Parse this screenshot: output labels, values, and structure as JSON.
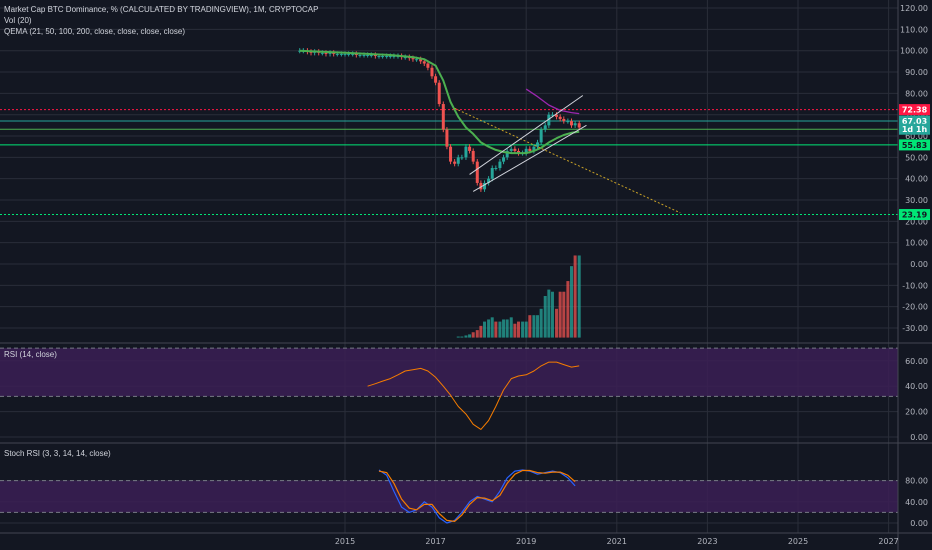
{
  "legend": {
    "title": "Market Cap BTC Dominance, % (CALCULATED BY TRADINGVIEW), 1M, CRYPTOCAP",
    "vol": "Vol (20)",
    "qema": "QEMA (21, 50, 100, 200, close, close, close, close)",
    "rsi": "RSI (14, close)",
    "stoch": "Stoch RSI (3, 3, 14, 14, close)"
  },
  "colors": {
    "background": "#131722",
    "grid": "#2a2e39",
    "up": "#26a69a",
    "down": "#ef5350",
    "ema_green": "#4caf50",
    "ema_purple": "#9c27b0",
    "rsi_line": "#f57c00",
    "band_fill": "#3b1f55",
    "stoch_k": "#2962ff",
    "stoch_d": "#f57c00",
    "red_level": "#ff1744",
    "green_level": "#00e676",
    "price_tag": "#26a69a"
  },
  "chart_data": [
    {
      "type": "line",
      "name_panel": "price",
      "y_axis_ticks": [
        "120.00",
        "110.00",
        "100.00",
        "90.00",
        "80.00",
        "70.00",
        "60.00",
        "50.00",
        "40.00",
        "30.00",
        "20.00",
        "10.00",
        "0.00",
        "-10.00",
        "-20.00",
        "-30.00"
      ],
      "ylim": [
        -35,
        123
      ],
      "x_axis_ticks": [
        "2015",
        "2017",
        "2019",
        "2021",
        "2023",
        "2025",
        "2027"
      ],
      "xlim": [
        2013.0,
        2027.2
      ],
      "price_labels": [
        {
          "value": 72.38,
          "label": "72.38",
          "color": "#ff1744"
        },
        {
          "value": 67.03,
          "label": "67.03",
          "color": "#26a69a"
        },
        {
          "value": 63.2,
          "label": "1d 1h",
          "color": "#26a69a"
        },
        {
          "value": 55.83,
          "label": "55.83",
          "color": "#00e676"
        },
        {
          "value": 23.19,
          "label": "23.19",
          "color": "#00e676"
        }
      ],
      "horizontal_levels": [
        {
          "value": 72.38,
          "style": "dotted",
          "color": "#ff1744"
        },
        {
          "value": 67.03,
          "style": "solid",
          "color": "#26a69a"
        },
        {
          "value": 63.2,
          "style": "solid",
          "color": "#4caf50"
        },
        {
          "value": 55.83,
          "style": "solid",
          "color": "#00e676"
        },
        {
          "value": 23.19,
          "style": "dotted",
          "color": "#00e676"
        }
      ],
      "closes": {
        "x": [
          2014.0,
          2014.08,
          2014.17,
          2014.25,
          2014.33,
          2014.42,
          2014.5,
          2014.58,
          2014.67,
          2014.75,
          2014.83,
          2014.92,
          2015.0,
          2015.08,
          2015.17,
          2015.25,
          2015.33,
          2015.42,
          2015.5,
          2015.58,
          2015.67,
          2015.75,
          2015.83,
          2015.92,
          2016.0,
          2016.08,
          2016.17,
          2016.25,
          2016.33,
          2016.42,
          2016.5,
          2016.58,
          2016.67,
          2016.75,
          2016.83,
          2016.92,
          2017.0,
          2017.08,
          2017.17,
          2017.25,
          2017.33,
          2017.42,
          2017.5,
          2017.58,
          2017.67,
          2017.75,
          2017.83,
          2017.92,
          2018.0,
          2018.08,
          2018.17,
          2018.25,
          2018.33,
          2018.42,
          2018.5,
          2018.58,
          2018.67,
          2018.75,
          2018.83,
          2018.92,
          2019.0,
          2019.08,
          2019.17,
          2019.25,
          2019.33,
          2019.42,
          2019.5,
          2019.58,
          2019.67,
          2019.75,
          2019.83,
          2019.92,
          2020.0,
          2020.08,
          2020.17
        ],
        "y": [
          100,
          100,
          99.5,
          99,
          99.5,
          99,
          99,
          98.5,
          99,
          98.5,
          98.5,
          98.5,
          98.5,
          98.5,
          98.5,
          98,
          98,
          98,
          98,
          98,
          97.5,
          97.5,
          97.5,
          97.5,
          97.5,
          97.5,
          97.5,
          97,
          97,
          96.5,
          96,
          96,
          95,
          94,
          92,
          88,
          85,
          75,
          63,
          55,
          48,
          47,
          50,
          50,
          55,
          53,
          48,
          38,
          35,
          38,
          40,
          45,
          45,
          48,
          50,
          53,
          54,
          53,
          52,
          52,
          54,
          53,
          55,
          57,
          63,
          65,
          70,
          70,
          69,
          68,
          67,
          67,
          65,
          66,
          64
        ]
      },
      "qema_green": {
        "x": [
          2014.0,
          2015.0,
          2016.0,
          2016.5,
          2016.75,
          2017.0,
          2017.17,
          2017.33,
          2017.5,
          2017.67,
          2017.83,
          2018.0,
          2018.17,
          2018.33,
          2018.5,
          2018.67,
          2018.83,
          2019.0,
          2019.17,
          2019.33,
          2019.5,
          2019.67,
          2019.83,
          2020.0,
          2020.17
        ],
        "y": [
          100,
          99,
          98,
          97,
          96,
          93,
          86,
          76,
          69,
          64,
          61,
          57,
          55,
          53.5,
          52.5,
          52,
          52,
          52,
          53,
          54.5,
          57,
          59,
          60.5,
          61.5,
          62
        ]
      },
      "qema_purple": {
        "x": [
          2019.0,
          2019.25,
          2019.5,
          2019.75,
          2020.0,
          2020.17
        ],
        "y": [
          82,
          78.5,
          74.5,
          72,
          71,
          70.5
        ]
      },
      "trend_lines": [
        {
          "x1": 2017.42,
          "y1": 73,
          "x2": 2022.4,
          "y2": 24
        },
        {
          "x1": 2017.75,
          "y1": 42,
          "x2": 2020.25,
          "y2": 79
        },
        {
          "x1": 2017.83,
          "y1": 34,
          "x2": 2020.33,
          "y2": 65
        }
      ],
      "volume": {
        "x": [
          2017.5,
          2017.58,
          2017.67,
          2017.75,
          2017.83,
          2017.92,
          2018.0,
          2018.08,
          2018.17,
          2018.25,
          2018.33,
          2018.42,
          2018.5,
          2018.58,
          2018.67,
          2018.75,
          2018.83,
          2018.92,
          2019.0,
          2019.08,
          2019.17,
          2019.25,
          2019.33,
          2019.42,
          2019.5,
          2019.58,
          2019.67,
          2019.75,
          2019.83,
          2019.92,
          2020.0,
          2020.08,
          2020.17
        ],
        "y": [
          -34,
          -34,
          -33.5,
          -33,
          -32,
          -31,
          -29,
          -27,
          -26,
          -25,
          -27,
          -27,
          -26,
          -26,
          -25,
          -28,
          -27,
          -27,
          -27,
          -24,
          -24,
          -24,
          -21,
          -15,
          -12,
          -13,
          -21,
          -13,
          -13,
          -8,
          -1,
          4,
          4
        ],
        "up": [
          true,
          true,
          true,
          true,
          false,
          false,
          false,
          true,
          true,
          true,
          false,
          true,
          true,
          true,
          true,
          false,
          false,
          true,
          true,
          false,
          true,
          true,
          true,
          true,
          true,
          true,
          false,
          false,
          false,
          false,
          true,
          false,
          true
        ]
      }
    },
    {
      "type": "line",
      "name_panel": "rsi",
      "y_axis_ticks": [
        "60.00",
        "40.00",
        "20.00",
        "0.00"
      ],
      "ylim": [
        -1,
        76
      ],
      "band": [
        32,
        70
      ],
      "x": [
        2015.5,
        2015.67,
        2015.83,
        2016.0,
        2016.17,
        2016.33,
        2016.5,
        2016.67,
        2016.83,
        2017.0,
        2017.17,
        2017.33,
        2017.5,
        2017.67,
        2017.83,
        2018.0,
        2018.17,
        2018.33,
        2018.5,
        2018.67,
        2018.83,
        2019.0,
        2019.17,
        2019.33,
        2019.5,
        2019.67,
        2019.83,
        2020.0,
        2020.17
      ],
      "values": [
        40,
        42,
        44,
        46,
        49,
        52,
        53,
        54,
        52,
        47,
        40,
        33,
        24,
        18,
        10,
        6,
        13,
        24,
        37,
        46,
        48,
        49,
        52,
        56,
        59,
        59,
        57,
        55,
        56
      ]
    },
    {
      "type": "line",
      "name_panel": "stoch_rsi",
      "y_axis_ticks": [
        "80.00",
        "40.00",
        "0.00"
      ],
      "ylim": [
        -5,
        105
      ],
      "band": [
        20,
        80
      ],
      "k": {
        "x": [
          2015.75,
          2015.92,
          2016.08,
          2016.25,
          2016.42,
          2016.58,
          2016.75,
          2016.92,
          2017.08,
          2017.25,
          2017.42,
          2017.58,
          2017.75,
          2017.92,
          2018.08,
          2018.25,
          2018.42,
          2018.58,
          2018.75,
          2018.92,
          2019.08,
          2019.25,
          2019.42,
          2019.58,
          2019.75,
          2019.92,
          2020.08
        ],
        "y": [
          100,
          90,
          60,
          30,
          20,
          25,
          40,
          30,
          10,
          0,
          5,
          20,
          40,
          50,
          45,
          40,
          60,
          85,
          98,
          100,
          98,
          92,
          95,
          98,
          95,
          85,
          70
        ]
      },
      "d": {
        "x": [
          2015.75,
          2015.92,
          2016.08,
          2016.25,
          2016.42,
          2016.58,
          2016.75,
          2016.92,
          2017.08,
          2017.25,
          2017.42,
          2017.58,
          2017.75,
          2017.92,
          2018.08,
          2018.25,
          2018.42,
          2018.58,
          2018.75,
          2018.92,
          2019.08,
          2019.25,
          2019.42,
          2019.58,
          2019.75,
          2019.92,
          2020.08
        ],
        "y": [
          98,
          95,
          75,
          45,
          28,
          25,
          35,
          35,
          18,
          5,
          3,
          15,
          35,
          48,
          47,
          42,
          52,
          75,
          92,
          99,
          99,
          95,
          94,
          96,
          96,
          90,
          78
        ]
      }
    }
  ]
}
